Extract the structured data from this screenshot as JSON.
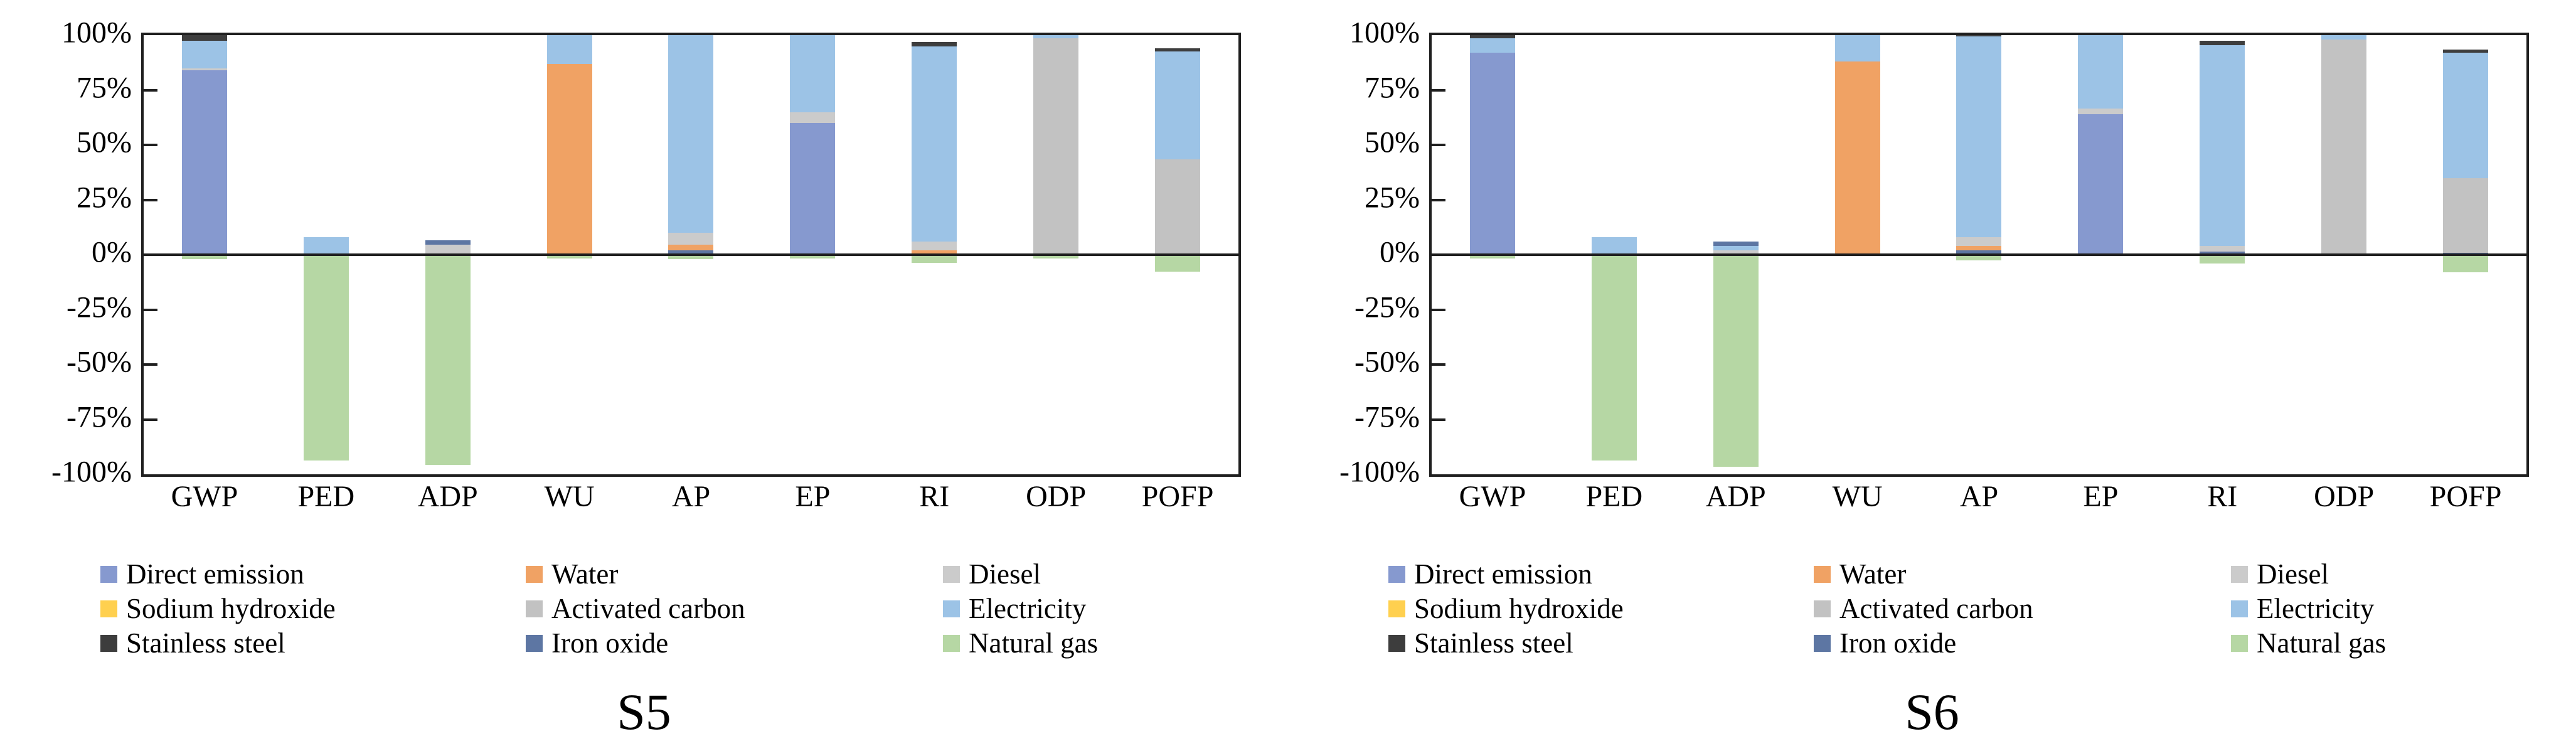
{
  "chart_data": {
    "type": "bar",
    "subtype": "stacked-percentage-contribution",
    "grid": false,
    "y_axis": {
      "min": -100,
      "max": 100,
      "step": 25,
      "unit": "%",
      "ticks": [
        {
          "label": "100%",
          "value": 100
        },
        {
          "label": "75%",
          "value": 75
        },
        {
          "label": "50%",
          "value": 50
        },
        {
          "label": "25%",
          "value": 25
        },
        {
          "label": "0%",
          "value": 0
        },
        {
          "label": "-25%",
          "value": -25
        },
        {
          "label": "-50%",
          "value": -50
        },
        {
          "label": "-75%",
          "value": -75
        },
        {
          "label": "-100%",
          "value": -100
        }
      ]
    },
    "categories": [
      "GWP",
      "PED",
      "ADP",
      "WU",
      "AP",
      "EP",
      "RI",
      "ODP",
      "POFP"
    ],
    "legend_position": "bottom",
    "legend": [
      {
        "label": "Direct emission",
        "color_key": "direct_emission"
      },
      {
        "label": "Water",
        "color_key": "water"
      },
      {
        "label": "Diesel",
        "color_key": "diesel"
      },
      {
        "label": "Sodium hydroxide",
        "color_key": "sodium_hydroxide"
      },
      {
        "label": "Activated carbon",
        "color_key": "activated_carbon"
      },
      {
        "label": "Electricity",
        "color_key": "electricity"
      },
      {
        "label": "Stainless steel",
        "color_key": "stainless_steel"
      },
      {
        "label": "Iron oxide",
        "color_key": "iron_oxide"
      },
      {
        "label": "Natural gas",
        "color_key": "natural_gas"
      }
    ],
    "colors": {
      "direct_emission": "#8699CF",
      "water": "#F0A264",
      "diesel": "#CBCBCB",
      "sodium_hydroxide": "#FFD04F",
      "activated_carbon": "#C2C2C2",
      "electricity": "#9CC3E6",
      "stainless_steel": "#3D3D3D",
      "iron_oxide": "#5D76A3",
      "natural_gas": "#B6D7A4",
      "axis": "#1F1F1F"
    },
    "charts": [
      {
        "title": "S5",
        "bars": {
          "GWP": {
            "pos": [
              {
                "k": "direct_emission",
                "v": 84
              },
              {
                "k": "diesel",
                "v": 1
              },
              {
                "k": "electricity",
                "v": 12.5
              },
              {
                "k": "stainless_steel",
                "v": 2.5
              }
            ],
            "neg": [
              {
                "k": "natural_gas",
                "v": 1.5
              }
            ]
          },
          "PED": {
            "pos": [
              {
                "k": "electricity",
                "v": 8
              }
            ],
            "neg": [
              {
                "k": "natural_gas",
                "v": 93
              }
            ]
          },
          "ADP": {
            "pos": [
              {
                "k": "diesel",
                "v": 4.5
              },
              {
                "k": "iron_oxide",
                "v": 2
              }
            ],
            "neg": [
              {
                "k": "natural_gas",
                "v": 95
              }
            ]
          },
          "WU": {
            "pos": [
              {
                "k": "water",
                "v": 87
              },
              {
                "k": "electricity",
                "v": 13
              }
            ],
            "neg": [
              {
                "k": "natural_gas",
                "v": 1
              }
            ]
          },
          "AP": {
            "pos": [
              {
                "k": "iron_oxide",
                "v": 2
              },
              {
                "k": "water",
                "v": 2.5
              },
              {
                "k": "diesel",
                "v": 5.5
              },
              {
                "k": "electricity",
                "v": 90
              }
            ],
            "neg": [
              {
                "k": "natural_gas",
                "v": 1.5
              }
            ]
          },
          "EP": {
            "pos": [
              {
                "k": "direct_emission",
                "v": 60
              },
              {
                "k": "diesel",
                "v": 5
              },
              {
                "k": "electricity",
                "v": 35
              }
            ],
            "neg": [
              {
                "k": "natural_gas",
                "v": 1
              }
            ]
          },
          "RI": {
            "pos": [
              {
                "k": "water",
                "v": 2
              },
              {
                "k": "diesel",
                "v": 4
              },
              {
                "k": "electricity",
                "v": 89
              },
              {
                "k": "stainless_steel",
                "v": 2
              }
            ],
            "neg": [
              {
                "k": "natural_gas",
                "v": 3
              }
            ]
          },
          "ODP": {
            "pos": [
              {
                "k": "activated_carbon",
                "v": 98.5
              },
              {
                "k": "electricity",
                "v": 1.5
              }
            ],
            "neg": [
              {
                "k": "natural_gas",
                "v": 1
              }
            ]
          },
          "POFP": {
            "pos": [
              {
                "k": "activated_carbon",
                "v": 43.5
              },
              {
                "k": "electricity",
                "v": 49
              },
              {
                "k": "stainless_steel",
                "v": 1.5
              }
            ],
            "neg": [
              {
                "k": "natural_gas",
                "v": 7
              }
            ]
          }
        }
      },
      {
        "title": "S6",
        "bars": {
          "GWP": {
            "pos": [
              {
                "k": "direct_emission",
                "v": 92
              },
              {
                "k": "electricity",
                "v": 6.5
              },
              {
                "k": "stainless_steel",
                "v": 1.5
              }
            ],
            "neg": [
              {
                "k": "natural_gas",
                "v": 1
              }
            ]
          },
          "PED": {
            "pos": [
              {
                "k": "electricity",
                "v": 8
              }
            ],
            "neg": [
              {
                "k": "natural_gas",
                "v": 93
              }
            ]
          },
          "ADP": {
            "pos": [
              {
                "k": "diesel",
                "v": 2
              },
              {
                "k": "electricity",
                "v": 2
              },
              {
                "k": "iron_oxide",
                "v": 2
              }
            ],
            "neg": [
              {
                "k": "natural_gas",
                "v": 96
              }
            ]
          },
          "WU": {
            "pos": [
              {
                "k": "water",
                "v": 88
              },
              {
                "k": "electricity",
                "v": 12
              }
            ],
            "neg": []
          },
          "AP": {
            "pos": [
              {
                "k": "iron_oxide",
                "v": 2
              },
              {
                "k": "water",
                "v": 2
              },
              {
                "k": "diesel",
                "v": 4
              },
              {
                "k": "electricity",
                "v": 91.5
              },
              {
                "k": "stainless_steel",
                "v": 0.5
              }
            ],
            "neg": [
              {
                "k": "natural_gas",
                "v": 2
              }
            ]
          },
          "EP": {
            "pos": [
              {
                "k": "direct_emission",
                "v": 64
              },
              {
                "k": "diesel",
                "v": 2.5
              },
              {
                "k": "electricity",
                "v": 33.5
              }
            ],
            "neg": []
          },
          "RI": {
            "pos": [
              {
                "k": "iron_oxide",
                "v": 1.5
              },
              {
                "k": "diesel",
                "v": 2.5
              },
              {
                "k": "electricity",
                "v": 91.5
              },
              {
                "k": "stainless_steel",
                "v": 2
              }
            ],
            "neg": [
              {
                "k": "natural_gas",
                "v": 3.5
              }
            ]
          },
          "ODP": {
            "pos": [
              {
                "k": "activated_carbon",
                "v": 98
              },
              {
                "k": "electricity",
                "v": 2
              }
            ],
            "neg": []
          },
          "POFP": {
            "pos": [
              {
                "k": "iron_oxide",
                "v": 1
              },
              {
                "k": "activated_carbon",
                "v": 34
              },
              {
                "k": "electricity",
                "v": 57
              },
              {
                "k": "stainless_steel",
                "v": 1.5
              }
            ],
            "neg": [
              {
                "k": "natural_gas",
                "v": 7.5
              }
            ]
          }
        }
      }
    ]
  }
}
